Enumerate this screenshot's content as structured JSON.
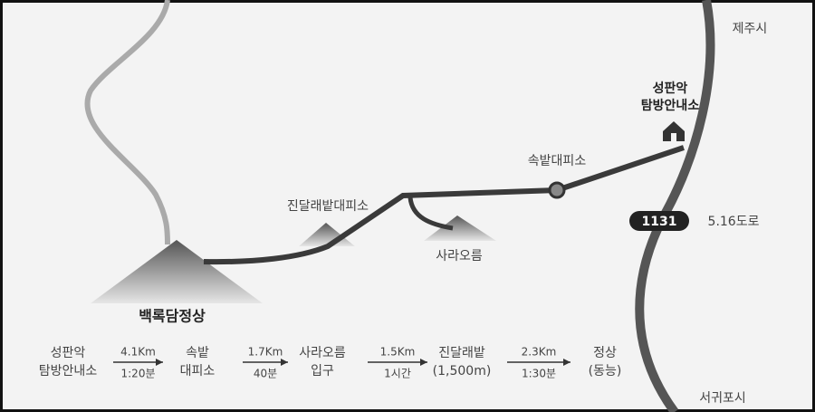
{
  "map": {
    "labels": {
      "city_north": "제주시",
      "city_south": "서귀포시",
      "road_number": "1131",
      "road_name": "5.16도로",
      "visitor_center": [
        "성판악",
        "탐방안내소"
      ],
      "shelter_sokbat": "속밭대피소",
      "shelter_jindallae": "진달래밭대피소",
      "saraoreum": "사라오름",
      "summit": "백록담정상"
    },
    "route": {
      "stops": [
        [
          "성판악",
          "탐방안내소"
        ],
        [
          "속밭",
          "대피소"
        ],
        [
          "사라오름",
          "입구"
        ],
        [
          "진달래밭",
          "(1,500m)"
        ],
        [
          "정상",
          "(동능)"
        ]
      ],
      "segments": [
        {
          "distance": "4.1Km",
          "time": "1:20분"
        },
        {
          "distance": "1.7Km",
          "time": "40분"
        },
        {
          "distance": "1.5Km",
          "time": "1시간"
        },
        {
          "distance": "2.3Km",
          "time": "1:30분"
        }
      ]
    }
  }
}
